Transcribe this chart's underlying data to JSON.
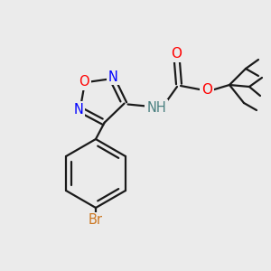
{
  "background_color": "#ebebeb",
  "bond_color": "#1a1a1a",
  "atom_colors": {
    "N": "#0000ff",
    "O": "#ff0000",
    "Br": "#cc7722",
    "NH_color": "#4a8080"
  },
  "figsize": [
    3.0,
    3.0
  ],
  "dpi": 100,
  "lw": 1.6,
  "fontsize": 10.5
}
